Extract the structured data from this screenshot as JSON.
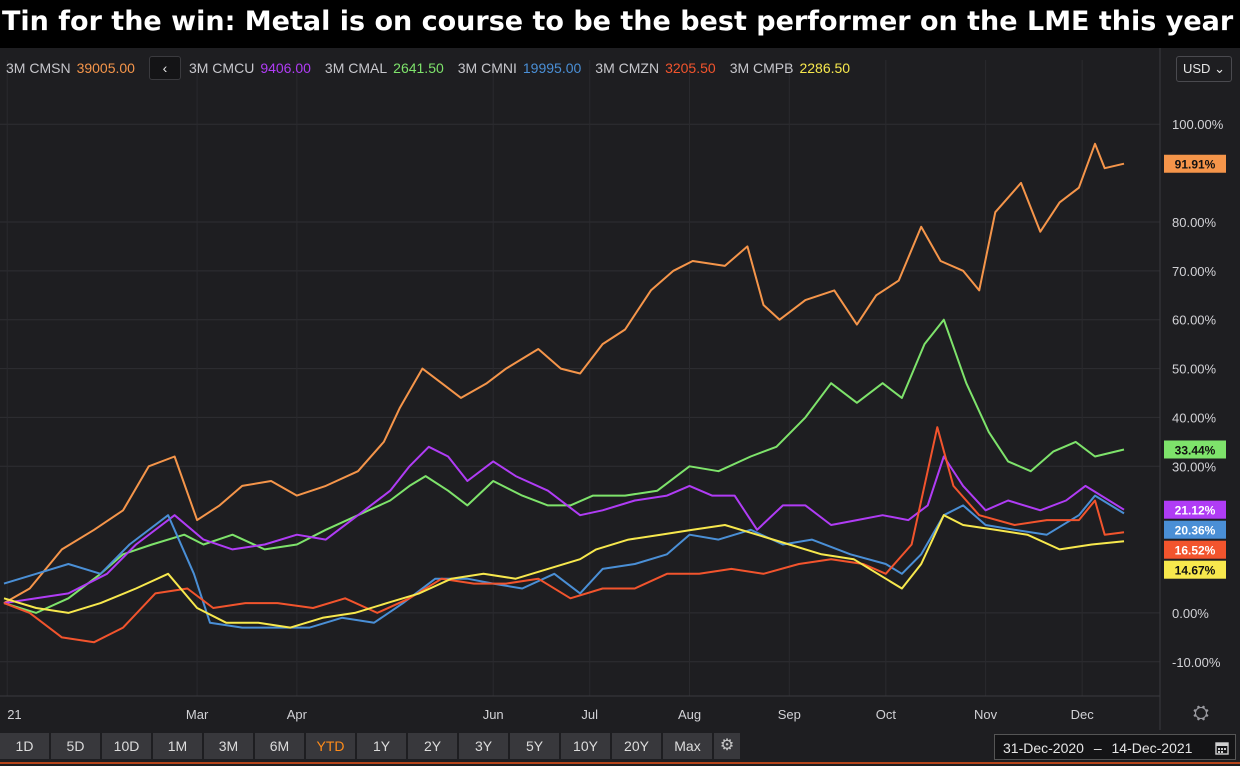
{
  "headline": "Tin for the win: Metal is on course to be the best performer on the LME this year",
  "legend": {
    "prev_label": "‹",
    "items": [
      {
        "name": "3M CMSN",
        "value": "39005.00",
        "color": "#f5954a"
      },
      {
        "name": "3M CMCU",
        "value": "9406.00",
        "color": "#b03cf5"
      },
      {
        "name": "3M CMAL",
        "value": "2641.50",
        "color": "#7ee36b"
      },
      {
        "name": "3M CMNI",
        "value": "19995.00",
        "color": "#4a8fd6"
      },
      {
        "name": "3M CMZN",
        "value": "3205.50",
        "color": "#f2542d"
      },
      {
        "name": "3M CMPB",
        "value": "2286.50",
        "color": "#f7e84d"
      }
    ]
  },
  "currency": {
    "label": "USD",
    "chevron": "⌄"
  },
  "settings_icon": "⛭",
  "range_buttons": [
    "1D",
    "5D",
    "10D",
    "1M",
    "3M",
    "6M",
    "YTD",
    "1Y",
    "2Y",
    "3Y",
    "5Y",
    "10Y",
    "20Y",
    "Max"
  ],
  "active_range": "YTD",
  "range_settings_icon": "⚙",
  "date_range": {
    "start": "31-Dec-2020",
    "separator": "–",
    "end": "14-Dec-2021",
    "icon": "calendar-icon"
  },
  "chart_data": {
    "type": "line",
    "title": "Tin for the win: Metal is on course to be the best performer on the LME this year",
    "xlabel": "",
    "ylabel": "",
    "x_start": "2020-12-31",
    "x_end": "2021-12-14",
    "x_tick_labels": [
      "21",
      "Mar",
      "Apr",
      "Jun",
      "Jul",
      "Aug",
      "Sep",
      "Oct",
      "Nov",
      "Dec"
    ],
    "x_tick_dates": [
      "2021-01-01",
      "2021-03-01",
      "2021-04-01",
      "2021-06-01",
      "2021-07-01",
      "2021-08-01",
      "2021-09-01",
      "2021-10-01",
      "2021-11-01",
      "2021-12-01"
    ],
    "y_ticks": [
      -10,
      0,
      30,
      40,
      50,
      60,
      70,
      80,
      100
    ],
    "y_tick_labels": [
      "-10.00%",
      "0.00%",
      "30.00%",
      "40.00%",
      "50.00%",
      "60.00%",
      "70.00%",
      "80.00%",
      "100.00%"
    ],
    "ylim": [
      -17,
      107
    ],
    "grid": true,
    "legend_position": "top-left",
    "series": [
      {
        "name": "3M CMSN",
        "color": "#f5954a",
        "end_label": "91.91%",
        "points": [
          [
            "2020-12-31",
            2
          ],
          [
            "2021-01-08",
            5
          ],
          [
            "2021-01-18",
            13
          ],
          [
            "2021-01-28",
            17
          ],
          [
            "2021-02-06",
            21
          ],
          [
            "2021-02-14",
            30
          ],
          [
            "2021-02-22",
            32
          ],
          [
            "2021-03-01",
            19
          ],
          [
            "2021-03-08",
            22
          ],
          [
            "2021-03-15",
            26
          ],
          [
            "2021-03-24",
            27
          ],
          [
            "2021-04-01",
            24
          ],
          [
            "2021-04-10",
            26
          ],
          [
            "2021-04-20",
            29
          ],
          [
            "2021-04-28",
            35
          ],
          [
            "2021-05-03",
            42
          ],
          [
            "2021-05-10",
            50
          ],
          [
            "2021-05-16",
            47
          ],
          [
            "2021-05-22",
            44
          ],
          [
            "2021-05-30",
            47
          ],
          [
            "2021-06-05",
            50
          ],
          [
            "2021-06-15",
            54
          ],
          [
            "2021-06-22",
            50
          ],
          [
            "2021-06-28",
            49
          ],
          [
            "2021-07-05",
            55
          ],
          [
            "2021-07-12",
            58
          ],
          [
            "2021-07-20",
            66
          ],
          [
            "2021-07-27",
            70
          ],
          [
            "2021-08-02",
            72
          ],
          [
            "2021-08-12",
            71
          ],
          [
            "2021-08-19",
            75
          ],
          [
            "2021-08-24",
            63
          ],
          [
            "2021-08-29",
            60
          ],
          [
            "2021-09-06",
            64
          ],
          [
            "2021-09-15",
            66
          ],
          [
            "2021-09-22",
            59
          ],
          [
            "2021-09-28",
            65
          ],
          [
            "2021-10-05",
            68
          ],
          [
            "2021-10-12",
            79
          ],
          [
            "2021-10-18",
            72
          ],
          [
            "2021-10-25",
            70
          ],
          [
            "2021-10-30",
            66
          ],
          [
            "2021-11-04",
            82
          ],
          [
            "2021-11-12",
            88
          ],
          [
            "2021-11-18",
            78
          ],
          [
            "2021-11-24",
            84
          ],
          [
            "2021-11-30",
            87
          ],
          [
            "2021-12-05",
            96
          ],
          [
            "2021-12-08",
            91
          ],
          [
            "2021-12-14",
            91.91
          ]
        ]
      },
      {
        "name": "3M CMAL",
        "color": "#7ee36b",
        "end_label": "33.44%",
        "points": [
          [
            "2020-12-31",
            2
          ],
          [
            "2021-01-10",
            0
          ],
          [
            "2021-01-20",
            3
          ],
          [
            "2021-01-30",
            8
          ],
          [
            "2021-02-06",
            12
          ],
          [
            "2021-02-15",
            14
          ],
          [
            "2021-02-25",
            16
          ],
          [
            "2021-03-03",
            14
          ],
          [
            "2021-03-12",
            16
          ],
          [
            "2021-03-22",
            13
          ],
          [
            "2021-04-01",
            14
          ],
          [
            "2021-04-10",
            17
          ],
          [
            "2021-04-20",
            20
          ],
          [
            "2021-04-30",
            23
          ],
          [
            "2021-05-06",
            26
          ],
          [
            "2021-05-11",
            28
          ],
          [
            "2021-05-18",
            25
          ],
          [
            "2021-05-24",
            22
          ],
          [
            "2021-06-01",
            27
          ],
          [
            "2021-06-10",
            24
          ],
          [
            "2021-06-18",
            22
          ],
          [
            "2021-06-25",
            22
          ],
          [
            "2021-07-02",
            24
          ],
          [
            "2021-07-12",
            24
          ],
          [
            "2021-07-22",
            25
          ],
          [
            "2021-08-01",
            30
          ],
          [
            "2021-08-10",
            29
          ],
          [
            "2021-08-20",
            32
          ],
          [
            "2021-08-28",
            34
          ],
          [
            "2021-09-06",
            40
          ],
          [
            "2021-09-14",
            47
          ],
          [
            "2021-09-22",
            43
          ],
          [
            "2021-09-30",
            47
          ],
          [
            "2021-10-06",
            44
          ],
          [
            "2021-10-13",
            55
          ],
          [
            "2021-10-19",
            60
          ],
          [
            "2021-10-26",
            47
          ],
          [
            "2021-11-02",
            37
          ],
          [
            "2021-11-08",
            31
          ],
          [
            "2021-11-15",
            29
          ],
          [
            "2021-11-22",
            33
          ],
          [
            "2021-11-29",
            35
          ],
          [
            "2021-12-05",
            32
          ],
          [
            "2021-12-14",
            33.44
          ]
        ]
      },
      {
        "name": "3M CMCU",
        "color": "#b03cf5",
        "end_label": "21.12%",
        "points": [
          [
            "2020-12-31",
            2
          ],
          [
            "2021-01-10",
            3
          ],
          [
            "2021-01-20",
            4
          ],
          [
            "2021-02-01",
            8
          ],
          [
            "2021-02-10",
            14
          ],
          [
            "2021-02-22",
            20
          ],
          [
            "2021-03-03",
            15
          ],
          [
            "2021-03-12",
            13
          ],
          [
            "2021-03-22",
            14
          ],
          [
            "2021-04-01",
            16
          ],
          [
            "2021-04-10",
            15
          ],
          [
            "2021-04-20",
            20
          ],
          [
            "2021-04-30",
            25
          ],
          [
            "2021-05-06",
            30
          ],
          [
            "2021-05-12",
            34
          ],
          [
            "2021-05-18",
            32
          ],
          [
            "2021-05-24",
            27
          ],
          [
            "2021-06-01",
            31
          ],
          [
            "2021-06-08",
            28
          ],
          [
            "2021-06-18",
            25
          ],
          [
            "2021-06-28",
            20
          ],
          [
            "2021-07-05",
            21
          ],
          [
            "2021-07-15",
            23
          ],
          [
            "2021-07-25",
            24
          ],
          [
            "2021-08-01",
            26
          ],
          [
            "2021-08-08",
            24
          ],
          [
            "2021-08-15",
            24
          ],
          [
            "2021-08-22",
            17
          ],
          [
            "2021-08-30",
            22
          ],
          [
            "2021-09-06",
            22
          ],
          [
            "2021-09-14",
            18
          ],
          [
            "2021-09-22",
            19
          ],
          [
            "2021-09-30",
            20
          ],
          [
            "2021-10-08",
            19
          ],
          [
            "2021-10-14",
            22
          ],
          [
            "2021-10-19",
            32
          ],
          [
            "2021-10-25",
            26
          ],
          [
            "2021-11-01",
            21
          ],
          [
            "2021-11-08",
            23
          ],
          [
            "2021-11-18",
            21
          ],
          [
            "2021-11-26",
            23
          ],
          [
            "2021-12-02",
            26
          ],
          [
            "2021-12-14",
            21.12
          ]
        ]
      },
      {
        "name": "3M CMNI",
        "color": "#4a8fd6",
        "end_label": "20.36%",
        "points": [
          [
            "2020-12-31",
            6
          ],
          [
            "2021-01-10",
            8
          ],
          [
            "2021-01-20",
            10
          ],
          [
            "2021-01-30",
            8
          ],
          [
            "2021-02-08",
            14
          ],
          [
            "2021-02-20",
            20
          ],
          [
            "2021-02-28",
            8
          ],
          [
            "2021-03-05",
            -2
          ],
          [
            "2021-03-15",
            -3
          ],
          [
            "2021-03-25",
            -3
          ],
          [
            "2021-04-05",
            -3
          ],
          [
            "2021-04-15",
            -1
          ],
          [
            "2021-04-25",
            -2
          ],
          [
            "2021-05-04",
            2
          ],
          [
            "2021-05-14",
            7
          ],
          [
            "2021-05-24",
            7
          ],
          [
            "2021-06-01",
            6
          ],
          [
            "2021-06-10",
            5
          ],
          [
            "2021-06-20",
            8
          ],
          [
            "2021-06-28",
            4
          ],
          [
            "2021-07-05",
            9
          ],
          [
            "2021-07-15",
            10
          ],
          [
            "2021-07-25",
            12
          ],
          [
            "2021-08-01",
            16
          ],
          [
            "2021-08-10",
            15
          ],
          [
            "2021-08-20",
            17
          ],
          [
            "2021-08-30",
            14
          ],
          [
            "2021-09-08",
            15
          ],
          [
            "2021-09-20",
            12
          ],
          [
            "2021-10-01",
            10
          ],
          [
            "2021-10-06",
            8
          ],
          [
            "2021-10-12",
            12
          ],
          [
            "2021-10-19",
            20
          ],
          [
            "2021-10-25",
            22
          ],
          [
            "2021-11-01",
            18
          ],
          [
            "2021-11-10",
            17
          ],
          [
            "2021-11-20",
            16
          ],
          [
            "2021-11-30",
            20
          ],
          [
            "2021-12-05",
            24
          ],
          [
            "2021-12-14",
            20.36
          ]
        ]
      },
      {
        "name": "3M CMZN",
        "color": "#f2542d",
        "end_label": "16.52%",
        "points": [
          [
            "2020-12-31",
            2
          ],
          [
            "2021-01-08",
            0
          ],
          [
            "2021-01-18",
            -5
          ],
          [
            "2021-01-28",
            -6
          ],
          [
            "2021-02-06",
            -3
          ],
          [
            "2021-02-16",
            4
          ],
          [
            "2021-02-26",
            5
          ],
          [
            "2021-03-06",
            1
          ],
          [
            "2021-03-16",
            2
          ],
          [
            "2021-03-26",
            2
          ],
          [
            "2021-04-06",
            1
          ],
          [
            "2021-04-16",
            3
          ],
          [
            "2021-04-26",
            0
          ],
          [
            "2021-05-06",
            3
          ],
          [
            "2021-05-16",
            7
          ],
          [
            "2021-05-26",
            6
          ],
          [
            "2021-06-05",
            6
          ],
          [
            "2021-06-15",
            7
          ],
          [
            "2021-06-25",
            3
          ],
          [
            "2021-07-05",
            5
          ],
          [
            "2021-07-15",
            5
          ],
          [
            "2021-07-25",
            8
          ],
          [
            "2021-08-04",
            8
          ],
          [
            "2021-08-14",
            9
          ],
          [
            "2021-08-24",
            8
          ],
          [
            "2021-09-04",
            10
          ],
          [
            "2021-09-14",
            11
          ],
          [
            "2021-09-24",
            10
          ],
          [
            "2021-10-01",
            8
          ],
          [
            "2021-10-09",
            14
          ],
          [
            "2021-10-17",
            38
          ],
          [
            "2021-10-22",
            26
          ],
          [
            "2021-10-30",
            20
          ],
          [
            "2021-11-10",
            18
          ],
          [
            "2021-11-20",
            19
          ],
          [
            "2021-11-30",
            19
          ],
          [
            "2021-12-05",
            23
          ],
          [
            "2021-12-08",
            16
          ],
          [
            "2021-12-14",
            16.52
          ]
        ]
      },
      {
        "name": "3M CMPB",
        "color": "#f7e84d",
        "end_label": "14.67%",
        "points": [
          [
            "2020-12-31",
            3
          ],
          [
            "2021-01-10",
            1
          ],
          [
            "2021-01-20",
            0
          ],
          [
            "2021-01-30",
            2
          ],
          [
            "2021-02-10",
            5
          ],
          [
            "2021-02-20",
            8
          ],
          [
            "2021-03-01",
            1
          ],
          [
            "2021-03-10",
            -2
          ],
          [
            "2021-03-20",
            -2
          ],
          [
            "2021-03-30",
            -3
          ],
          [
            "2021-04-09",
            -1
          ],
          [
            "2021-04-19",
            0
          ],
          [
            "2021-04-29",
            2
          ],
          [
            "2021-05-09",
            4
          ],
          [
            "2021-05-19",
            7
          ],
          [
            "2021-05-29",
            8
          ],
          [
            "2021-06-08",
            7
          ],
          [
            "2021-06-18",
            9
          ],
          [
            "2021-06-28",
            11
          ],
          [
            "2021-07-03",
            13
          ],
          [
            "2021-07-13",
            15
          ],
          [
            "2021-07-23",
            16
          ],
          [
            "2021-08-02",
            17
          ],
          [
            "2021-08-12",
            18
          ],
          [
            "2021-08-22",
            16
          ],
          [
            "2021-09-01",
            14
          ],
          [
            "2021-09-11",
            12
          ],
          [
            "2021-09-21",
            11
          ],
          [
            "2021-10-01",
            7
          ],
          [
            "2021-10-06",
            5
          ],
          [
            "2021-10-12",
            10
          ],
          [
            "2021-10-19",
            20
          ],
          [
            "2021-10-25",
            18
          ],
          [
            "2021-11-04",
            17
          ],
          [
            "2021-11-14",
            16
          ],
          [
            "2021-11-24",
            13
          ],
          [
            "2021-12-04",
            14
          ],
          [
            "2021-12-14",
            14.67
          ]
        ]
      }
    ]
  }
}
